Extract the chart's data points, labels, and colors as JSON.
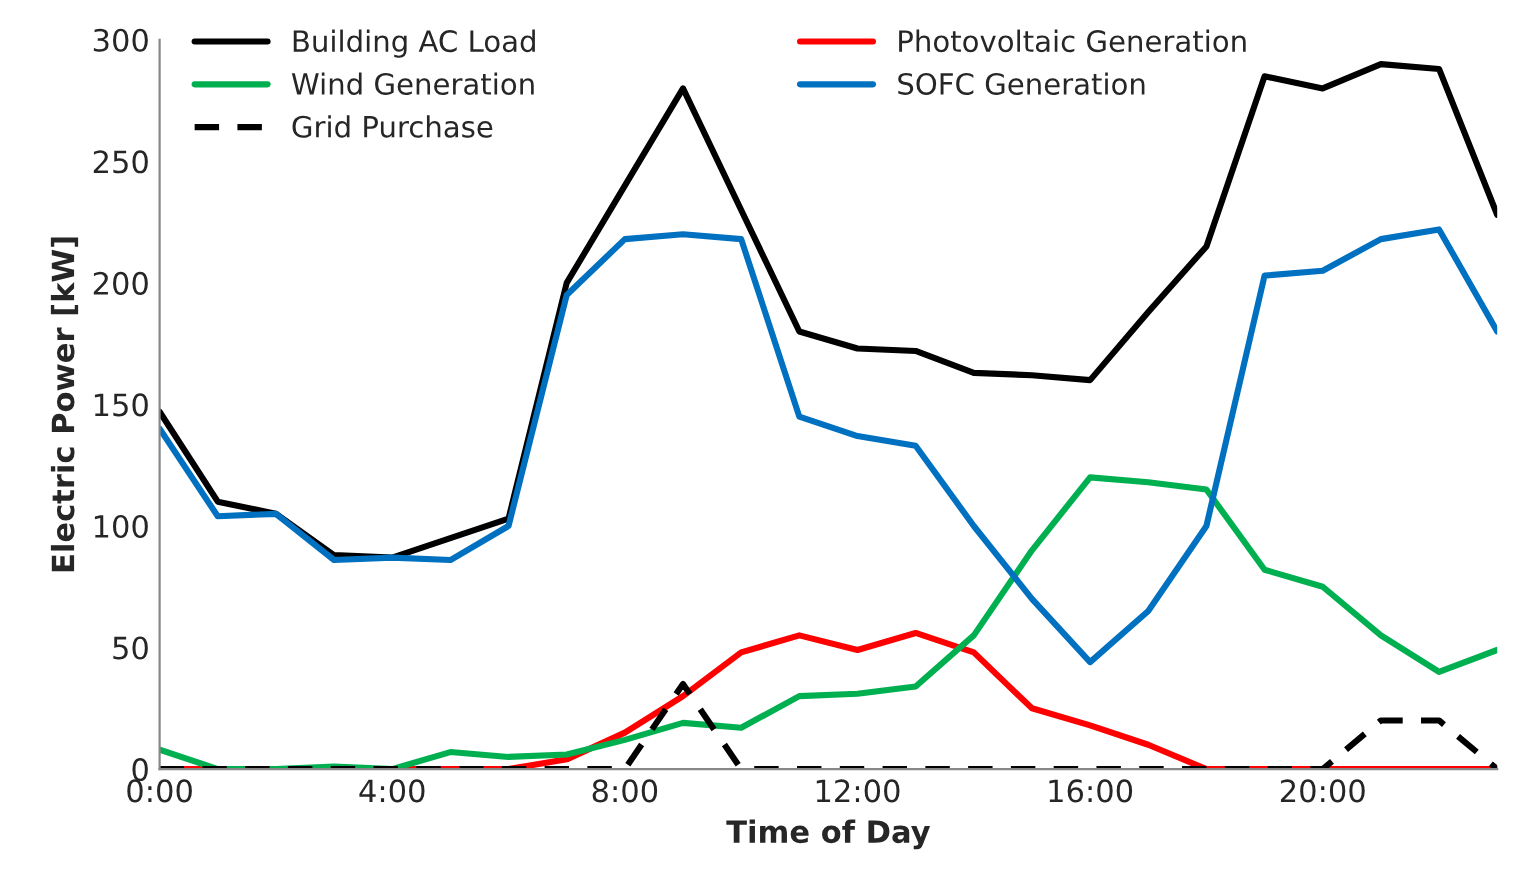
{
  "chart_data": {
    "type": "line",
    "xlabel": "Time of Day",
    "ylabel": "Electric Power [kW]",
    "x": [
      0,
      1,
      2,
      3,
      4,
      5,
      6,
      7,
      8,
      9,
      10,
      11,
      12,
      13,
      14,
      15,
      16,
      17,
      18,
      19,
      20,
      21,
      22,
      23
    ],
    "series": [
      {
        "name": "Building AC Load",
        "color": "#000000",
        "values": [
          147,
          110,
          105,
          88,
          87,
          95,
          103,
          200,
          240,
          280,
          230,
          180,
          173,
          172,
          163,
          162,
          160,
          188,
          215,
          285,
          280,
          290,
          288,
          228
        ]
      },
      {
        "name": "Photovoltaic Generation",
        "color": "#ff0000",
        "values": [
          0,
          0,
          0,
          0,
          0,
          0,
          0,
          4,
          15,
          30,
          48,
          55,
          49,
          56,
          48,
          25,
          18,
          10,
          0,
          0,
          0,
          0,
          0,
          0
        ]
      },
      {
        "name": "Wind Generation",
        "color": "#00b050",
        "values": [
          8,
          0,
          0,
          1,
          0,
          7,
          5,
          6,
          12,
          19,
          17,
          30,
          31,
          34,
          55,
          90,
          120,
          118,
          115,
          82,
          75,
          55,
          40,
          49
        ]
      },
      {
        "name": "SOFC Generation",
        "color": "#0070c0",
        "values": [
          140,
          104,
          105,
          86,
          87,
          86,
          100,
          195,
          218,
          220,
          218,
          145,
          137,
          133,
          100,
          70,
          44,
          65,
          100,
          203,
          205,
          218,
          222,
          180
        ]
      },
      {
        "name": "Grid Purchase",
        "color": "#000000",
        "line_style": "dashed",
        "values": [
          0,
          0,
          0,
          0,
          0,
          0,
          0,
          0,
          0,
          35,
          0,
          0,
          0,
          0,
          0,
          0,
          0,
          0,
          0,
          0,
          0,
          20,
          20,
          0
        ]
      }
    ],
    "xlim": [
      0,
      23
    ],
    "ylim": [
      0,
      300
    ],
    "xticks": [
      {
        "value": 0,
        "label": "0:00"
      },
      {
        "value": 4,
        "label": "4:00"
      },
      {
        "value": 8,
        "label": "8:00"
      },
      {
        "value": 12,
        "label": "12:00"
      },
      {
        "value": 16,
        "label": "16:00"
      },
      {
        "value": 20,
        "label": "20:00"
      }
    ],
    "yticks": [
      0,
      50,
      100,
      150,
      200,
      250,
      300
    ],
    "grid": false,
    "legend": "top",
    "marker": "none",
    "line_style": "solid"
  }
}
